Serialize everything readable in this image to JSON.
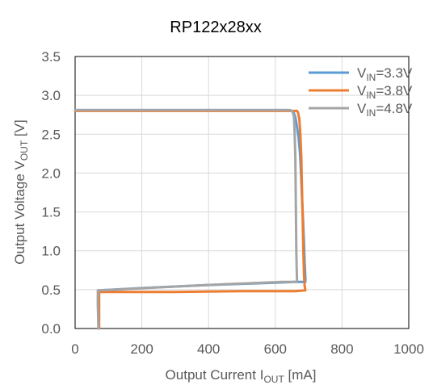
{
  "chart_data": {
    "type": "line",
    "title": "RP122x28xx",
    "xlabel": {
      "main": "Output Current I",
      "sub": "OUT",
      "unit": " [mA]"
    },
    "ylabel": {
      "main": "Output Voltage V",
      "sub": "OUT",
      "unit": " [V]"
    },
    "xlim": [
      0,
      1000
    ],
    "ylim": [
      0,
      3.5
    ],
    "x_ticks": [
      "0",
      "200",
      "400",
      "600",
      "800",
      "1000"
    ],
    "y_ticks": [
      "0.0",
      "0.5",
      "1.0",
      "1.5",
      "2.0",
      "2.5",
      "3.0",
      "3.5"
    ],
    "grid": true,
    "legend_position": "top-right",
    "series": [
      {
        "name": "VIN=3.3V",
        "legend": {
          "main": "V",
          "sub": "IN",
          "rest": "=3.3V"
        },
        "color": "#5B9BD5",
        "x": [
          0,
          640,
          648,
          655,
          660,
          665,
          670,
          674,
          677,
          680,
          683,
          686,
          688,
          690,
          690,
          660,
          600,
          400,
          200,
          72,
          70,
          70
        ],
        "y": [
          2.81,
          2.81,
          2.8,
          2.78,
          2.72,
          2.6,
          2.45,
          2.25,
          2.0,
          1.7,
          1.4,
          1.1,
          0.85,
          0.65,
          0.6,
          0.6,
          0.59,
          0.56,
          0.52,
          0.49,
          0.3,
          0.0
        ]
      },
      {
        "name": "VIN=3.8V",
        "legend": {
          "main": "V",
          "sub": "IN",
          "rest": "=3.8V"
        },
        "color": "#ED7D31",
        "x": [
          0,
          650,
          660,
          665,
          668,
          672,
          675,
          678,
          680,
          682,
          684,
          686,
          688,
          690,
          660,
          500,
          300,
          150,
          72,
          72,
          72
        ],
        "y": [
          2.8,
          2.8,
          2.8,
          2.8,
          2.78,
          2.7,
          2.5,
          2.2,
          1.8,
          1.4,
          1.0,
          0.7,
          0.55,
          0.49,
          0.48,
          0.48,
          0.47,
          0.47,
          0.47,
          0.25,
          0.0
        ]
      },
      {
        "name": "VIN=4.8V",
        "legend": {
          "main": "V",
          "sub": "IN",
          "rest": "=4.8V"
        },
        "color": "#A5A5A5",
        "x": [
          0,
          645,
          652,
          656,
          658,
          660,
          661,
          662,
          663,
          664,
          665,
          665,
          620,
          450,
          250,
          120,
          68,
          68,
          70
        ],
        "y": [
          2.81,
          2.81,
          2.79,
          2.72,
          2.5,
          2.2,
          1.8,
          1.4,
          1.0,
          0.8,
          0.65,
          0.6,
          0.6,
          0.57,
          0.53,
          0.5,
          0.49,
          0.3,
          0.0
        ]
      }
    ]
  }
}
